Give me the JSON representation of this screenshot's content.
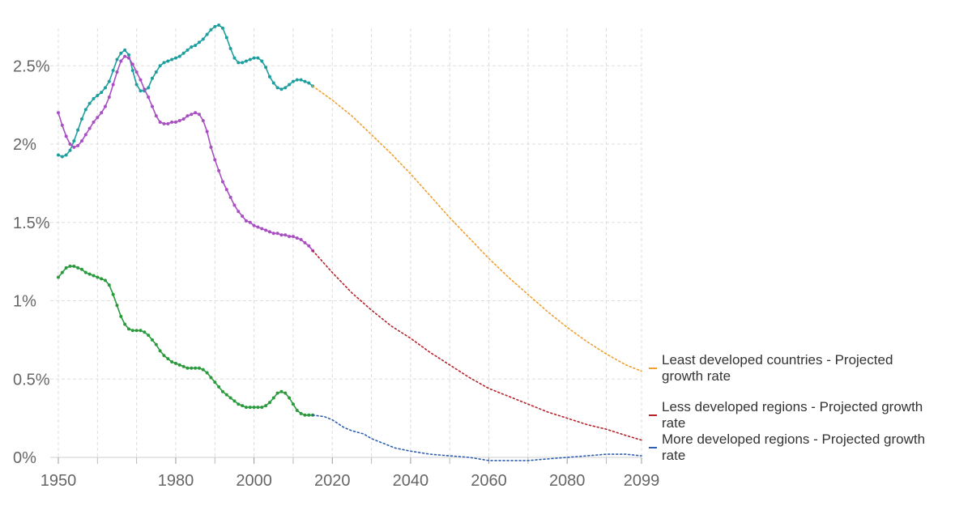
{
  "chart_data": {
    "type": "line",
    "xlim": [
      1950,
      2099
    ],
    "ylim": [
      0,
      2.75
    ],
    "y_unit": "%",
    "grid": true,
    "y_ticks": [
      {
        "value": 0,
        "label": "0%"
      },
      {
        "value": 0.5,
        "label": "0.5%"
      },
      {
        "value": 1,
        "label": "1%"
      },
      {
        "value": 1.5,
        "label": "1.5%"
      },
      {
        "value": 2,
        "label": "2%"
      },
      {
        "value": 2.5,
        "label": "2.5%"
      }
    ],
    "x_ticks": [
      {
        "value": 1950,
        "label": "1950"
      },
      {
        "value": 1980,
        "label": "1980"
      },
      {
        "value": 2000,
        "label": "2000"
      },
      {
        "value": 2020,
        "label": "2020"
      },
      {
        "value": 2040,
        "label": "2040"
      },
      {
        "value": 2060,
        "label": "2060"
      },
      {
        "value": 2080,
        "label": "2080"
      },
      {
        "value": 2099,
        "label": "2099"
      }
    ],
    "x_minor_grid": [
      1960,
      1970,
      1990,
      2010,
      2030,
      2050,
      2070,
      2090
    ],
    "series": [
      {
        "key": "least",
        "color": "#1e9e9e",
        "style": "solid-markers",
        "points": [
          [
            1950,
            1.93
          ],
          [
            1951,
            1.92
          ],
          [
            1952,
            1.93
          ],
          [
            1953,
            1.96
          ],
          [
            1954,
            2.02
          ],
          [
            1955,
            2.09
          ],
          [
            1956,
            2.16
          ],
          [
            1957,
            2.22
          ],
          [
            1958,
            2.26
          ],
          [
            1959,
            2.29
          ],
          [
            1960,
            2.31
          ],
          [
            1961,
            2.33
          ],
          [
            1962,
            2.36
          ],
          [
            1963,
            2.4
          ],
          [
            1964,
            2.47
          ],
          [
            1965,
            2.54
          ],
          [
            1966,
            2.58
          ],
          [
            1967,
            2.6
          ],
          [
            1968,
            2.57
          ],
          [
            1969,
            2.47
          ],
          [
            1970,
            2.38
          ],
          [
            1971,
            2.34
          ],
          [
            1972,
            2.34
          ],
          [
            1973,
            2.36
          ],
          [
            1974,
            2.42
          ],
          [
            1975,
            2.46
          ],
          [
            1976,
            2.5
          ],
          [
            1977,
            2.52
          ],
          [
            1978,
            2.53
          ],
          [
            1979,
            2.54
          ],
          [
            1980,
            2.55
          ],
          [
            1981,
            2.56
          ],
          [
            1982,
            2.58
          ],
          [
            1983,
            2.6
          ],
          [
            1984,
            2.62
          ],
          [
            1985,
            2.63
          ],
          [
            1986,
            2.65
          ],
          [
            1987,
            2.67
          ],
          [
            1988,
            2.7
          ],
          [
            1989,
            2.73
          ],
          [
            1990,
            2.75
          ],
          [
            1991,
            2.76
          ],
          [
            1992,
            2.74
          ],
          [
            1993,
            2.68
          ],
          [
            1994,
            2.61
          ],
          [
            1995,
            2.55
          ],
          [
            1996,
            2.52
          ],
          [
            1997,
            2.52
          ],
          [
            1998,
            2.53
          ],
          [
            1999,
            2.54
          ],
          [
            2000,
            2.55
          ],
          [
            2001,
            2.55
          ],
          [
            2002,
            2.53
          ],
          [
            2003,
            2.49
          ],
          [
            2004,
            2.43
          ],
          [
            2005,
            2.39
          ],
          [
            2006,
            2.36
          ],
          [
            2007,
            2.35
          ],
          [
            2008,
            2.36
          ],
          [
            2009,
            2.38
          ],
          [
            2010,
            2.4
          ],
          [
            2011,
            2.41
          ],
          [
            2012,
            2.41
          ],
          [
            2013,
            2.4
          ],
          [
            2014,
            2.39
          ],
          [
            2015,
            2.37
          ]
        ]
      },
      {
        "key": "less",
        "color": "#a84fc2",
        "style": "solid-markers",
        "points": [
          [
            1950,
            2.2
          ],
          [
            1951,
            2.12
          ],
          [
            1952,
            2.05
          ],
          [
            1953,
            2.0
          ],
          [
            1954,
            1.98
          ],
          [
            1955,
            1.99
          ],
          [
            1956,
            2.02
          ],
          [
            1957,
            2.06
          ],
          [
            1958,
            2.1
          ],
          [
            1959,
            2.14
          ],
          [
            1960,
            2.17
          ],
          [
            1961,
            2.2
          ],
          [
            1962,
            2.24
          ],
          [
            1963,
            2.3
          ],
          [
            1964,
            2.38
          ],
          [
            1965,
            2.46
          ],
          [
            1966,
            2.53
          ],
          [
            1967,
            2.56
          ],
          [
            1968,
            2.55
          ],
          [
            1969,
            2.51
          ],
          [
            1970,
            2.46
          ],
          [
            1971,
            2.41
          ],
          [
            1972,
            2.35
          ],
          [
            1973,
            2.3
          ],
          [
            1974,
            2.24
          ],
          [
            1975,
            2.18
          ],
          [
            1976,
            2.14
          ],
          [
            1977,
            2.13
          ],
          [
            1978,
            2.13
          ],
          [
            1979,
            2.14
          ],
          [
            1980,
            2.14
          ],
          [
            1981,
            2.15
          ],
          [
            1982,
            2.16
          ],
          [
            1983,
            2.18
          ],
          [
            1984,
            2.19
          ],
          [
            1985,
            2.2
          ],
          [
            1986,
            2.19
          ],
          [
            1987,
            2.15
          ],
          [
            1988,
            2.08
          ],
          [
            1989,
            1.98
          ],
          [
            1990,
            1.9
          ],
          [
            1991,
            1.83
          ],
          [
            1992,
            1.76
          ],
          [
            1993,
            1.71
          ],
          [
            1994,
            1.66
          ],
          [
            1995,
            1.61
          ],
          [
            1996,
            1.57
          ],
          [
            1997,
            1.54
          ],
          [
            1998,
            1.51
          ],
          [
            1999,
            1.5
          ],
          [
            2000,
            1.48
          ],
          [
            2001,
            1.47
          ],
          [
            2002,
            1.46
          ],
          [
            2003,
            1.45
          ],
          [
            2004,
            1.44
          ],
          [
            2005,
            1.43
          ],
          [
            2006,
            1.43
          ],
          [
            2007,
            1.42
          ],
          [
            2008,
            1.42
          ],
          [
            2009,
            1.41
          ],
          [
            2010,
            1.41
          ],
          [
            2011,
            1.4
          ],
          [
            2012,
            1.39
          ],
          [
            2013,
            1.37
          ],
          [
            2014,
            1.35
          ],
          [
            2015,
            1.32
          ]
        ]
      },
      {
        "key": "more",
        "color": "#2b9a3d",
        "style": "solid-markers",
        "points": [
          [
            1950,
            1.15
          ],
          [
            1951,
            1.18
          ],
          [
            1952,
            1.21
          ],
          [
            1953,
            1.22
          ],
          [
            1954,
            1.22
          ],
          [
            1955,
            1.21
          ],
          [
            1956,
            1.2
          ],
          [
            1957,
            1.18
          ],
          [
            1958,
            1.17
          ],
          [
            1959,
            1.16
          ],
          [
            1960,
            1.15
          ],
          [
            1961,
            1.14
          ],
          [
            1962,
            1.13
          ],
          [
            1963,
            1.1
          ],
          [
            1964,
            1.04
          ],
          [
            1965,
            0.97
          ],
          [
            1966,
            0.9
          ],
          [
            1967,
            0.85
          ],
          [
            1968,
            0.82
          ],
          [
            1969,
            0.81
          ],
          [
            1970,
            0.81
          ],
          [
            1971,
            0.81
          ],
          [
            1972,
            0.8
          ],
          [
            1973,
            0.78
          ],
          [
            1974,
            0.75
          ],
          [
            1975,
            0.72
          ],
          [
            1976,
            0.68
          ],
          [
            1977,
            0.65
          ],
          [
            1978,
            0.63
          ],
          [
            1979,
            0.61
          ],
          [
            1980,
            0.6
          ],
          [
            1981,
            0.59
          ],
          [
            1982,
            0.58
          ],
          [
            1983,
            0.57
          ],
          [
            1984,
            0.57
          ],
          [
            1985,
            0.57
          ],
          [
            1986,
            0.57
          ],
          [
            1987,
            0.56
          ],
          [
            1988,
            0.54
          ],
          [
            1989,
            0.51
          ],
          [
            1990,
            0.48
          ],
          [
            1991,
            0.45
          ],
          [
            1992,
            0.42
          ],
          [
            1993,
            0.4
          ],
          [
            1994,
            0.38
          ],
          [
            1995,
            0.36
          ],
          [
            1996,
            0.34
          ],
          [
            1997,
            0.33
          ],
          [
            1998,
            0.32
          ],
          [
            1999,
            0.32
          ],
          [
            2000,
            0.32
          ],
          [
            2001,
            0.32
          ],
          [
            2002,
            0.32
          ],
          [
            2003,
            0.33
          ],
          [
            2004,
            0.35
          ],
          [
            2005,
            0.38
          ],
          [
            2006,
            0.41
          ],
          [
            2007,
            0.42
          ],
          [
            2008,
            0.41
          ],
          [
            2009,
            0.38
          ],
          [
            2010,
            0.34
          ],
          [
            2011,
            0.3
          ],
          [
            2012,
            0.28
          ],
          [
            2013,
            0.27
          ],
          [
            2014,
            0.27
          ],
          [
            2015,
            0.27
          ]
        ]
      },
      {
        "key": "least_projected",
        "name": "Least developed countries - Projected growth rate",
        "color": "#f0a030",
        "style": "dotted",
        "points": [
          [
            2015,
            2.37
          ],
          [
            2020,
            2.28
          ],
          [
            2025,
            2.18
          ],
          [
            2030,
            2.06
          ],
          [
            2035,
            1.94
          ],
          [
            2040,
            1.81
          ],
          [
            2045,
            1.67
          ],
          [
            2050,
            1.53
          ],
          [
            2055,
            1.4
          ],
          [
            2060,
            1.27
          ],
          [
            2065,
            1.15
          ],
          [
            2070,
            1.04
          ],
          [
            2075,
            0.93
          ],
          [
            2080,
            0.83
          ],
          [
            2085,
            0.74
          ],
          [
            2090,
            0.66
          ],
          [
            2095,
            0.59
          ],
          [
            2099,
            0.55
          ]
        ]
      },
      {
        "key": "less_projected",
        "name": "Less developed regions - Projected growth rate",
        "color": "#b5232a",
        "style": "dotted",
        "points": [
          [
            2015,
            1.32
          ],
          [
            2020,
            1.18
          ],
          [
            2025,
            1.05
          ],
          [
            2030,
            0.94
          ],
          [
            2035,
            0.84
          ],
          [
            2040,
            0.76
          ],
          [
            2045,
            0.67
          ],
          [
            2050,
            0.59
          ],
          [
            2055,
            0.51
          ],
          [
            2060,
            0.44
          ],
          [
            2065,
            0.39
          ],
          [
            2070,
            0.34
          ],
          [
            2075,
            0.29
          ],
          [
            2080,
            0.25
          ],
          [
            2085,
            0.21
          ],
          [
            2090,
            0.18
          ],
          [
            2095,
            0.14
          ],
          [
            2099,
            0.11
          ]
        ]
      },
      {
        "key": "more_projected",
        "name": "More developed regions - Projected growth rate",
        "color": "#2f5fb0",
        "style": "dotted",
        "points": [
          [
            2015,
            0.27
          ],
          [
            2018,
            0.26
          ],
          [
            2020,
            0.24
          ],
          [
            2023,
            0.19
          ],
          [
            2025,
            0.17
          ],
          [
            2028,
            0.15
          ],
          [
            2030,
            0.12
          ],
          [
            2033,
            0.09
          ],
          [
            2036,
            0.06
          ],
          [
            2040,
            0.04
          ],
          [
            2045,
            0.02
          ],
          [
            2050,
            0.01
          ],
          [
            2055,
            0.0
          ],
          [
            2060,
            -0.02
          ],
          [
            2065,
            -0.02
          ],
          [
            2070,
            -0.02
          ],
          [
            2075,
            -0.01
          ],
          [
            2080,
            0.0
          ],
          [
            2085,
            0.01
          ],
          [
            2090,
            0.02
          ],
          [
            2095,
            0.02
          ],
          [
            2099,
            0.01
          ]
        ]
      }
    ],
    "legend": [
      {
        "key": "least_projected",
        "lines": [
          "Least developed countries - Projected",
          "growth rate"
        ],
        "color": "#f0a030"
      },
      {
        "key": "less_projected",
        "lines": [
          "Less developed regions - Projected growth",
          "rate"
        ],
        "color": "#b5232a"
      },
      {
        "key": "more_projected",
        "lines": [
          "More developed regions - Projected growth",
          "rate"
        ],
        "color": "#2f5fb0"
      }
    ]
  }
}
